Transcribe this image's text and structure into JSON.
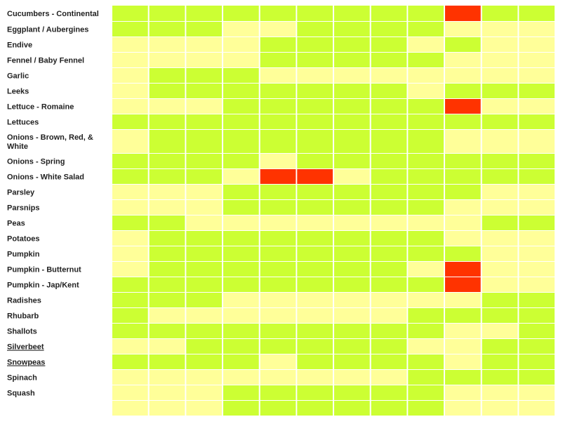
{
  "colors": {
    "low": "#ffff99",
    "medium": "#ccff33",
    "high": "#ff3300",
    "background": "#ffffff",
    "label": "#222222"
  },
  "chart_data": {
    "type": "heatmap",
    "title": "",
    "xlabel": "",
    "ylabel": "",
    "legend": "none",
    "columns": 12,
    "value_levels": {
      "0": "low (pale yellow)",
      "1": "medium (lime green)",
      "2": "high (red)"
    },
    "rows": [
      {
        "label": "Cucumbers - Continental",
        "values": [
          1,
          1,
          1,
          1,
          1,
          1,
          1,
          1,
          1,
          2,
          1,
          1
        ]
      },
      {
        "label": "Eggplant / Aubergines",
        "values": [
          1,
          1,
          1,
          0,
          0,
          1,
          1,
          1,
          1,
          0,
          0,
          0
        ]
      },
      {
        "label": "Endive",
        "values": [
          0,
          0,
          0,
          0,
          1,
          1,
          1,
          1,
          0,
          1,
          0,
          0
        ]
      },
      {
        "label": "Fennel / Baby Fennel",
        "values": [
          0,
          0,
          0,
          0,
          1,
          1,
          1,
          1,
          1,
          0,
          0,
          0
        ]
      },
      {
        "label": "Garlic",
        "values": [
          0,
          1,
          1,
          1,
          0,
          0,
          0,
          0,
          0,
          0,
          0,
          0
        ]
      },
      {
        "label": "Leeks",
        "values": [
          0,
          1,
          1,
          1,
          1,
          1,
          1,
          1,
          0,
          1,
          1,
          1
        ]
      },
      {
        "label": "Lettuce - Romaine",
        "values": [
          0,
          0,
          0,
          1,
          1,
          1,
          1,
          1,
          1,
          2,
          0,
          0
        ]
      },
      {
        "label": "Lettuces",
        "values": [
          1,
          1,
          1,
          1,
          1,
          1,
          1,
          1,
          1,
          1,
          1,
          1
        ]
      },
      {
        "label": "Onions - Brown, Red, & White",
        "values": [
          0,
          1,
          1,
          1,
          1,
          1,
          1,
          1,
          1,
          0,
          0,
          0
        ]
      },
      {
        "label": "Onions - Spring",
        "values": [
          1,
          1,
          1,
          1,
          0,
          1,
          1,
          1,
          1,
          1,
          1,
          1
        ]
      },
      {
        "label": "Onions - White Salad",
        "values": [
          1,
          1,
          1,
          0,
          2,
          2,
          0,
          1,
          1,
          1,
          1,
          1
        ]
      },
      {
        "label": "Parsley",
        "values": [
          0,
          0,
          0,
          1,
          1,
          1,
          1,
          1,
          1,
          1,
          0,
          0
        ]
      },
      {
        "label": "Parsnips",
        "values": [
          0,
          0,
          0,
          1,
          1,
          1,
          1,
          1,
          1,
          0,
          0,
          0
        ]
      },
      {
        "label": "Peas",
        "values": [
          1,
          1,
          0,
          0,
          0,
          0,
          0,
          0,
          0,
          0,
          1,
          1
        ]
      },
      {
        "label": "Potatoes",
        "values": [
          0,
          1,
          1,
          1,
          1,
          1,
          1,
          1,
          1,
          0,
          0,
          0
        ]
      },
      {
        "label": "Pumpkin",
        "values": [
          0,
          1,
          1,
          1,
          1,
          1,
          1,
          1,
          1,
          1,
          0,
          0
        ]
      },
      {
        "label": "Pumpkin - Butternut",
        "values": [
          0,
          1,
          1,
          1,
          1,
          1,
          1,
          1,
          0,
          2,
          0,
          0
        ]
      },
      {
        "label": "Pumpkin - Jap/Kent",
        "values": [
          1,
          1,
          1,
          1,
          1,
          1,
          1,
          1,
          1,
          2,
          0,
          0
        ]
      },
      {
        "label": "Radishes",
        "values": [
          1,
          1,
          1,
          0,
          0,
          0,
          0,
          0,
          0,
          0,
          1,
          1
        ]
      },
      {
        "label": "Rhubarb",
        "values": [
          1,
          0,
          0,
          0,
          0,
          0,
          0,
          0,
          1,
          1,
          1,
          1
        ]
      },
      {
        "label": "Shallots",
        "values": [
          1,
          1,
          1,
          1,
          1,
          1,
          1,
          1,
          1,
          0,
          0,
          1
        ]
      },
      {
        "label": "Silverbeet",
        "values": [
          0,
          0,
          1,
          1,
          1,
          1,
          1,
          1,
          0,
          0,
          1,
          1
        ]
      },
      {
        "label": "Snowpeas",
        "values": [
          1,
          1,
          1,
          1,
          0,
          1,
          1,
          1,
          1,
          0,
          1,
          1
        ]
      },
      {
        "label": "Spinach",
        "values": [
          0,
          0,
          0,
          0,
          0,
          0,
          0,
          0,
          1,
          1,
          1,
          1
        ]
      },
      {
        "label": "Squash",
        "values": [
          0,
          0,
          0,
          1,
          1,
          1,
          1,
          1,
          1,
          0,
          0,
          0
        ]
      },
      {
        "label": "",
        "values": [
          0,
          0,
          0,
          1,
          1,
          1,
          1,
          1,
          1,
          0,
          0,
          0
        ]
      }
    ],
    "spell_marked": [
      "Silverbeet",
      "Snowpeas"
    ]
  }
}
